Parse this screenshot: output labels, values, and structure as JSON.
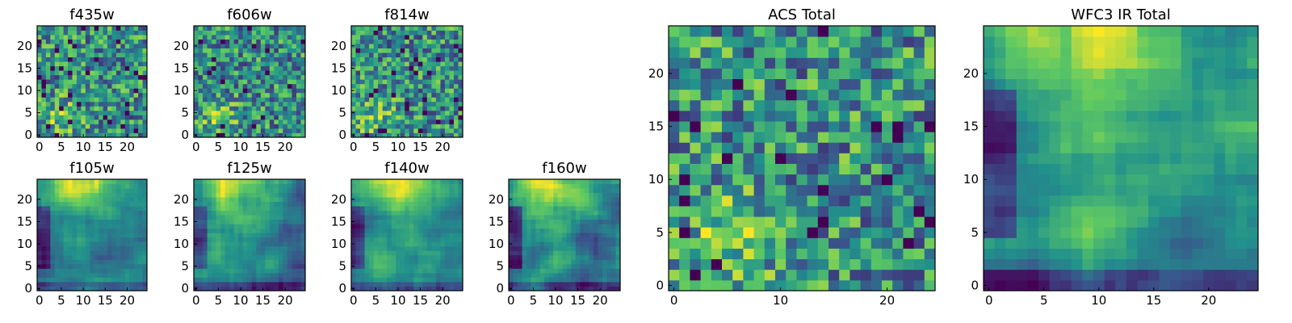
{
  "chart_data": [
    {
      "type": "heatmap",
      "title": "f435w",
      "xlim": [
        0,
        25
      ],
      "ylim": [
        0,
        25
      ],
      "xticks": [
        0,
        5,
        10,
        15,
        20
      ],
      "yticks": [
        0,
        5,
        10,
        15,
        20
      ],
      "grid": false,
      "seed": 11,
      "pattern": "noise"
    },
    {
      "type": "heatmap",
      "title": "f606w",
      "xlim": [
        0,
        25
      ],
      "ylim": [
        0,
        25
      ],
      "xticks": [
        0,
        5,
        10,
        15,
        20
      ],
      "yticks": [
        0,
        5,
        10,
        15,
        20
      ],
      "grid": false,
      "seed": 23,
      "pattern": "noise"
    },
    {
      "type": "heatmap",
      "title": "f814w",
      "xlim": [
        0,
        25
      ],
      "ylim": [
        0,
        25
      ],
      "xticks": [
        0,
        5,
        10,
        15,
        20
      ],
      "yticks": [
        0,
        5,
        10,
        15,
        20
      ],
      "grid": false,
      "seed": 37,
      "pattern": "noise"
    },
    {
      "type": "heatmap",
      "title": "f105w",
      "xlim": [
        0,
        25
      ],
      "ylim": [
        0,
        25
      ],
      "xticks": [
        0,
        5,
        10,
        15,
        20
      ],
      "yticks": [
        0,
        5,
        10,
        15,
        20
      ],
      "grid": false,
      "seed": 41,
      "pattern": "smooth"
    },
    {
      "type": "heatmap",
      "title": "f125w",
      "xlim": [
        0,
        25
      ],
      "ylim": [
        0,
        25
      ],
      "xticks": [
        0,
        5,
        10,
        15,
        20
      ],
      "yticks": [
        0,
        5,
        10,
        15,
        20
      ],
      "grid": false,
      "seed": 53,
      "pattern": "smooth"
    },
    {
      "type": "heatmap",
      "title": "f140w",
      "xlim": [
        0,
        25
      ],
      "ylim": [
        0,
        25
      ],
      "xticks": [
        0,
        5,
        10,
        15,
        20
      ],
      "yticks": [
        0,
        5,
        10,
        15,
        20
      ],
      "grid": false,
      "seed": 67,
      "pattern": "smooth"
    },
    {
      "type": "heatmap",
      "title": "f160w",
      "xlim": [
        0,
        25
      ],
      "ylim": [
        0,
        25
      ],
      "xticks": [
        0,
        5,
        10,
        15,
        20
      ],
      "yticks": [
        0,
        5,
        10,
        15,
        20
      ],
      "grid": false,
      "seed": 71,
      "pattern": "smooth"
    },
    {
      "type": "heatmap",
      "title": "ACS Total",
      "xlim": [
        0,
        25
      ],
      "ylim": [
        0,
        25
      ],
      "xticks": [
        0,
        10,
        20
      ],
      "yticks": [
        0,
        5,
        10,
        15,
        20
      ],
      "grid": false,
      "seed": 83,
      "pattern": "noise"
    },
    {
      "type": "heatmap",
      "title": "WFC3 IR Total",
      "xlim": [
        0,
        25
      ],
      "ylim": [
        0,
        25
      ],
      "xticks": [
        0,
        5,
        10,
        15,
        20
      ],
      "yticks": [
        0,
        5,
        10,
        15,
        20
      ],
      "grid": false,
      "seed": 97,
      "pattern": "smooth"
    }
  ],
  "colormap": [
    "#440154",
    "#3b528b",
    "#21918c",
    "#5ec962",
    "#fde725"
  ]
}
